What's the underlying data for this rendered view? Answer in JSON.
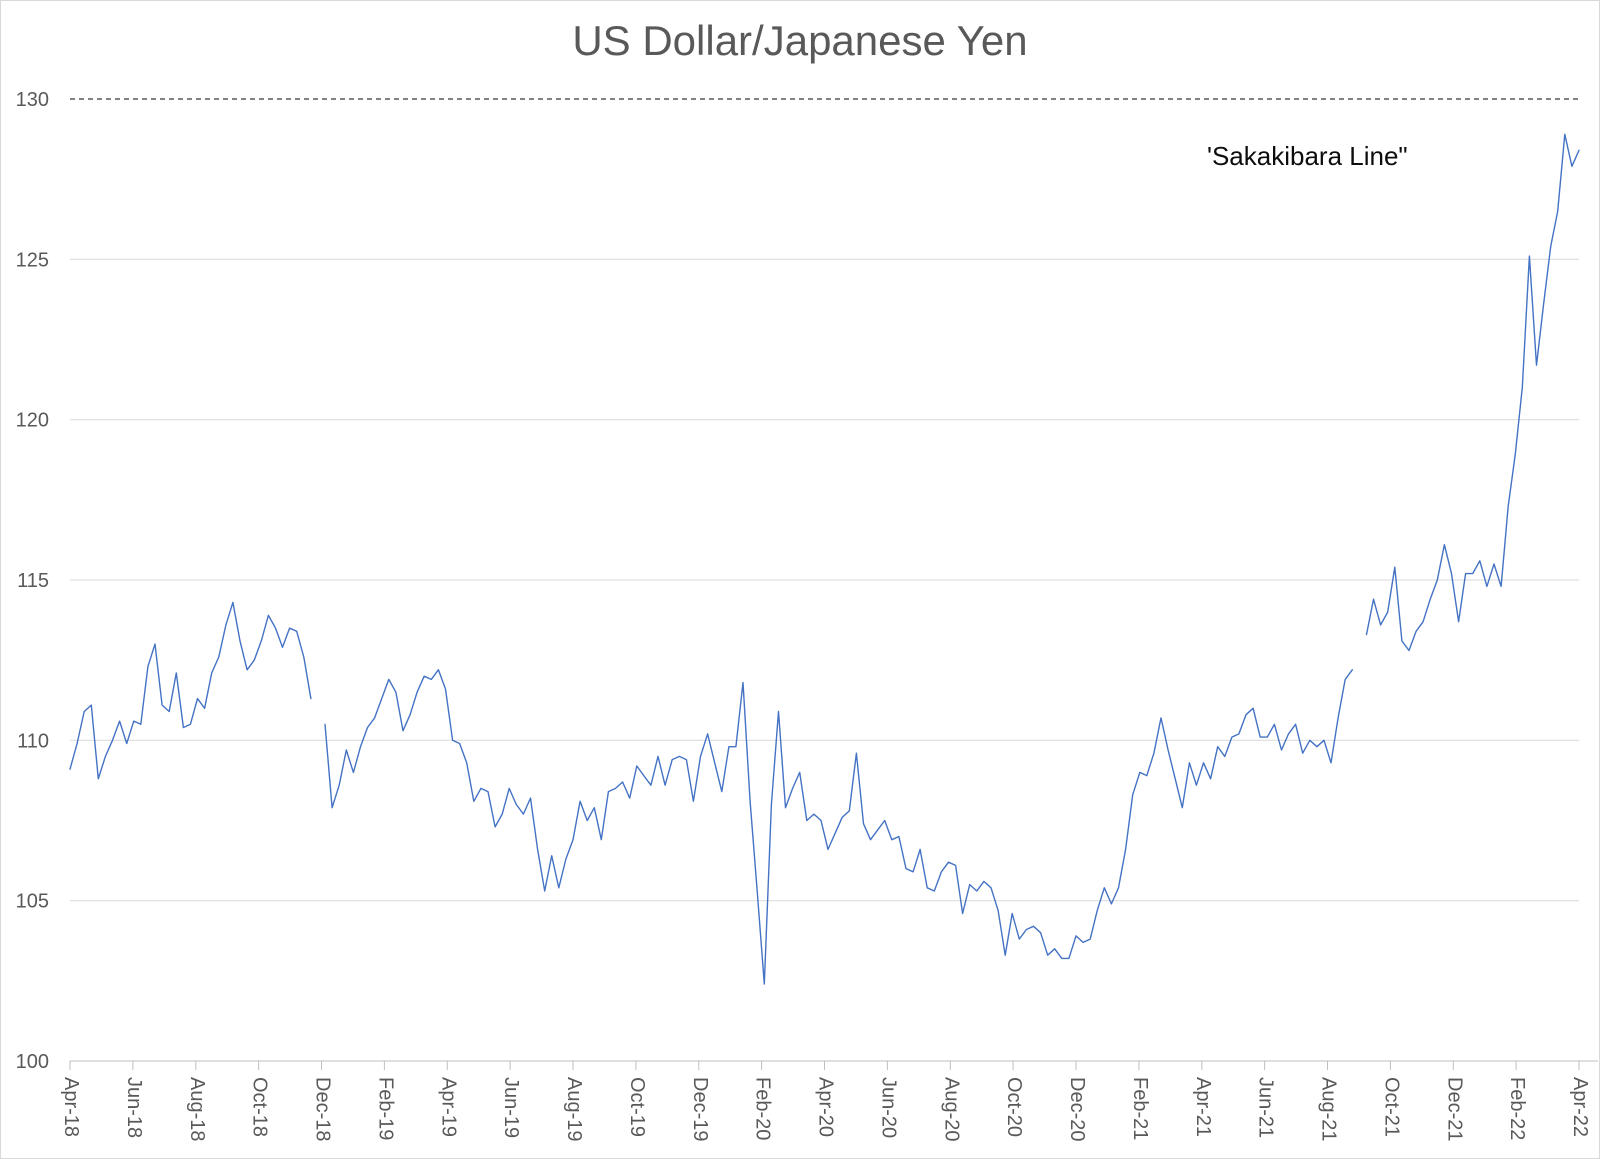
{
  "chart_data": {
    "type": "line",
    "title": "US Dollar/Japanese Yen",
    "xlabel": "",
    "ylabel": "",
    "ylim": [
      100,
      130
    ],
    "y_ticks": [
      100,
      105,
      110,
      115,
      120,
      125,
      130
    ],
    "y_gridlines": [
      105,
      110,
      115,
      120,
      125
    ],
    "grid": true,
    "legend": false,
    "x_tick_labels": [
      "Apr-18",
      "Jun-18",
      "Aug-18",
      "Oct-18",
      "Dec-18",
      "Feb-19",
      "Apr-19",
      "Jun-19",
      "Aug-19",
      "Oct-19",
      "Dec-19",
      "Feb-20",
      "Apr-20",
      "Jun-20",
      "Aug-20",
      "Oct-20",
      "Dec-20",
      "Feb-21",
      "Apr-21",
      "Jun-21",
      "Aug-21",
      "Oct-21",
      "Dec-21",
      "Feb-22",
      "Apr-22"
    ],
    "reference_line": {
      "label": "'Sakakibara Line\"",
      "value": 130,
      "style": "dashed"
    },
    "series": [
      {
        "name": "USD/JPY",
        "frequency": "approx-weekly",
        "x_start": "Apr-18",
        "x_end": "Apr-22",
        "values": [
          109.1,
          109.9,
          110.9,
          111.1,
          108.8,
          109.5,
          110.0,
          110.6,
          109.9,
          110.6,
          110.5,
          112.3,
          113.0,
          111.1,
          110.9,
          112.1,
          110.4,
          110.5,
          111.3,
          111.0,
          112.1,
          112.6,
          113.6,
          114.3,
          113.1,
          112.2,
          112.5,
          113.1,
          113.9,
          113.5,
          112.9,
          113.5,
          113.4,
          112.6,
          111.3,
          null,
          110.5,
          107.9,
          108.6,
          109.7,
          109.0,
          109.8,
          110.4,
          110.7,
          111.3,
          111.9,
          111.5,
          110.3,
          110.8,
          111.5,
          112.0,
          111.9,
          112.2,
          111.6,
          110.0,
          109.9,
          109.3,
          108.1,
          108.5,
          108.4,
          107.3,
          107.7,
          108.5,
          108.0,
          107.7,
          108.2,
          106.6,
          105.3,
          106.4,
          105.4,
          106.3,
          106.9,
          108.1,
          107.5,
          107.9,
          106.9,
          108.4,
          108.5,
          108.7,
          108.2,
          109.2,
          108.9,
          108.6,
          109.5,
          108.6,
          109.4,
          109.5,
          109.4,
          108.1,
          109.5,
          110.2,
          109.3,
          108.4,
          109.8,
          109.8,
          111.8,
          108.1,
          105.3,
          102.4,
          108.0,
          110.9,
          107.9,
          108.5,
          109.0,
          107.5,
          107.7,
          107.5,
          106.6,
          107.1,
          107.6,
          107.8,
          109.6,
          107.4,
          106.9,
          107.2,
          107.5,
          106.9,
          107.0,
          106.0,
          105.9,
          106.6,
          105.4,
          105.3,
          105.9,
          106.2,
          106.1,
          104.6,
          105.5,
          105.3,
          105.6,
          105.4,
          104.7,
          103.3,
          104.6,
          103.8,
          104.1,
          104.2,
          104.0,
          103.3,
          103.5,
          103.2,
          103.2,
          103.9,
          103.7,
          103.8,
          104.7,
          105.4,
          104.9,
          105.4,
          106.6,
          108.3,
          109.0,
          108.9,
          109.6,
          110.7,
          109.7,
          108.8,
          107.9,
          109.3,
          108.6,
          109.3,
          108.8,
          109.8,
          109.5,
          110.1,
          110.2,
          110.8,
          111.0,
          110.1,
          110.1,
          110.5,
          109.7,
          110.2,
          110.5,
          109.6,
          110.0,
          109.8,
          110.0,
          109.3,
          110.7,
          111.9,
          112.2,
          null,
          113.3,
          114.4,
          113.6,
          114.0,
          115.4,
          113.1,
          112.8,
          113.4,
          113.7,
          114.4,
          115.0,
          116.1,
          115.2,
          113.7,
          115.2,
          115.2,
          115.6,
          114.8,
          115.5,
          114.8,
          117.3,
          118.9,
          121.0,
          125.1,
          121.7,
          123.6,
          125.4,
          126.5,
          128.9,
          127.9,
          128.4
        ]
      }
    ]
  },
  "colors": {
    "line": "#4472C4",
    "gridline": "#D9D9D9",
    "axis": "#BFBFBF",
    "tick_text": "#595959",
    "title_text": "#595959",
    "annotation_text": "#0d0d0d",
    "reference_line": "#595959",
    "background": "#FFFFFF"
  }
}
